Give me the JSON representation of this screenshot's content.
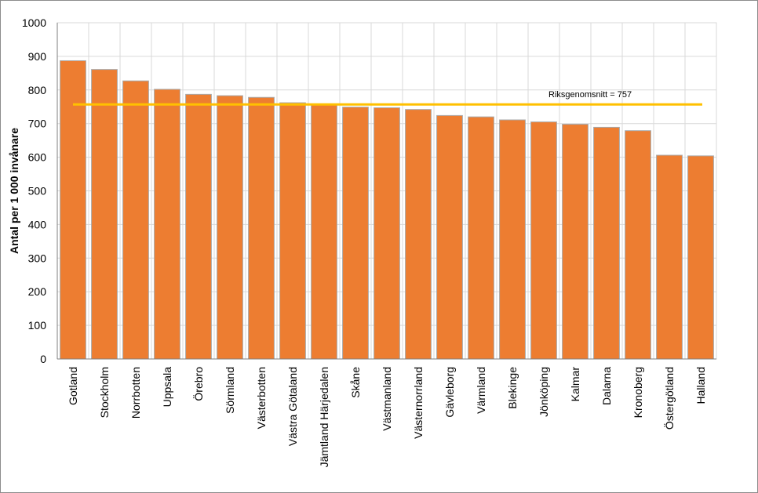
{
  "chart_data": {
    "type": "bar",
    "title": "",
    "xlabel": "",
    "ylabel": "Antal per 1 000 invånare",
    "ylim": [
      0,
      1000
    ],
    "yticks": [
      0,
      100,
      200,
      300,
      400,
      500,
      600,
      700,
      800,
      900,
      1000
    ],
    "grid": true,
    "legend": "none",
    "categories": [
      "Gotland",
      "Stockholm",
      "Norrbotten",
      "Uppsala",
      "Örebro",
      "Sörmland",
      "Västerbotten",
      "Västra Götaland",
      "Jämtland Härjedalen",
      "Skåne",
      "Västmanland",
      "Västernorrland",
      "Gävleborg",
      "Värmland",
      "Blekinge",
      "Jönköping",
      "Kalmar",
      "Dalarna",
      "Kronoberg",
      "Östergötland",
      "Halland"
    ],
    "values": [
      887,
      861,
      827,
      802,
      787,
      783,
      778,
      762,
      758,
      749,
      747,
      742,
      724,
      720,
      711,
      705,
      698,
      689,
      679,
      606,
      604
    ],
    "reference_line": {
      "value": 757,
      "label": "Riksgenomsnitt = 757"
    },
    "colors": {
      "bar": "#ED7D31",
      "bar_edge": "#A9A9A9",
      "reference_line": "#FFC000",
      "grid": "#D9D9D9"
    }
  }
}
